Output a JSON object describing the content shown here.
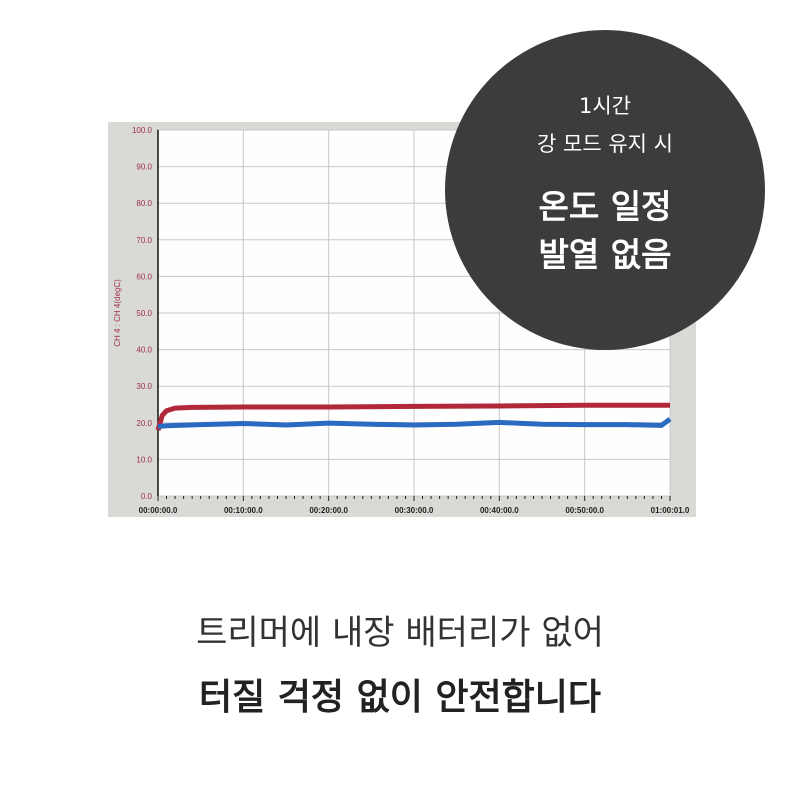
{
  "chart_data": {
    "type": "line",
    "title": "",
    "xlabel": "",
    "ylabel": "CH 4 : CH 4(degC)",
    "ylim": [
      0,
      100
    ],
    "xlim_minutes": [
      0,
      60
    ],
    "y_ticks": [
      "0.0",
      "10.0",
      "20.0",
      "30.0",
      "40.0",
      "50.0",
      "60.0",
      "70.0",
      "80.0",
      "90.0",
      "100.0"
    ],
    "x_ticks": [
      "00:00:00.0",
      "00:10:00.0",
      "00:20:00.0",
      "00:30:00.0",
      "00:40:00.0",
      "00:50:00.0",
      "01:00:01.0"
    ],
    "grid": true,
    "legend": "none",
    "series": [
      {
        "color": "#b0283a",
        "x": [
          0,
          0.5,
          1,
          2,
          4,
          10,
          20,
          30,
          40,
          50,
          59,
          60
        ],
        "values": [
          18,
          22,
          23.3,
          24,
          24.2,
          24.3,
          24.3,
          24.5,
          24.6,
          24.8,
          24.8,
          24.8
        ]
      },
      {
        "color": "#2a6ac0",
        "x": [
          0,
          1,
          5,
          10,
          15,
          20,
          25,
          30,
          35,
          40,
          45,
          50,
          55,
          59,
          60
        ],
        "values": [
          19,
          19.2,
          19.5,
          19.8,
          19.4,
          19.9,
          19.6,
          19.4,
          19.6,
          20.1,
          19.6,
          19.5,
          19.5,
          19.3,
          21
        ]
      }
    ]
  },
  "badge": {
    "line1": "1시간",
    "line2": "강 모드 유지 시",
    "line3": "온도 일정",
    "line4": "발열 없음"
  },
  "caption": {
    "line1": "트리머에 내장 배터리가 없어",
    "line2": "터질 걱정 없이 안전합니다"
  }
}
